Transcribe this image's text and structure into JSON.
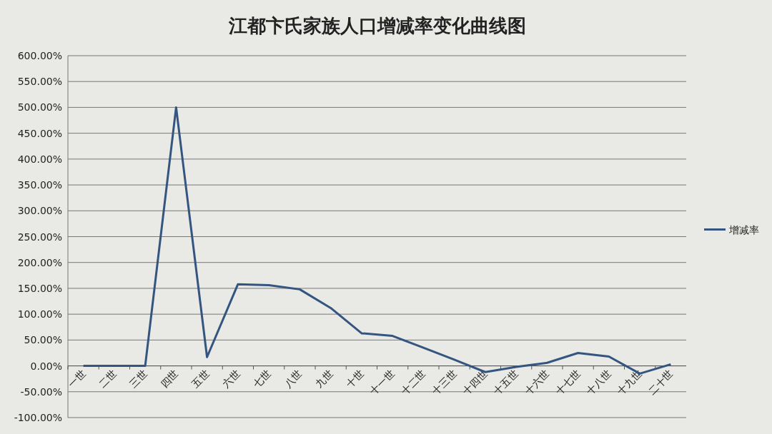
{
  "chart_data": {
    "type": "line",
    "title": "江都卞氏家族人口增减率变化曲线图",
    "categories": [
      "一世",
      "二世",
      "三世",
      "四世",
      "五世",
      "六世",
      "七世",
      "八世",
      "九世",
      "十世",
      "十一世",
      "十二世",
      "十三世",
      "十四世",
      "十五世",
      "十六世",
      "十七世",
      "十八世",
      "十九世",
      "二十世"
    ],
    "series": [
      {
        "name": "增减率",
        "color": "#34557f",
        "values": [
          0,
          0,
          0,
          500,
          17,
          158,
          156,
          148,
          112,
          63,
          58,
          35,
          12,
          -12,
          -2,
          6,
          25,
          18,
          -15,
          3
        ]
      }
    ],
    "ylim": [
      -100,
      600
    ],
    "yticks": [
      {
        "value": -100,
        "label": "-100.00%"
      },
      {
        "value": -50,
        "label": "-50.00%"
      },
      {
        "value": 0,
        "label": "0.00%"
      },
      {
        "value": 50,
        "label": "50.00%"
      },
      {
        "value": 100,
        "label": "100.00%"
      },
      {
        "value": 150,
        "label": "150.00%"
      },
      {
        "value": 200,
        "label": "200.00%"
      },
      {
        "value": 250,
        "label": "250.00%"
      },
      {
        "value": 300,
        "label": "300.00%"
      },
      {
        "value": 350,
        "label": "350.00%"
      },
      {
        "value": 400,
        "label": "400.00%"
      },
      {
        "value": 450,
        "label": "450.00%"
      },
      {
        "value": 500,
        "label": "500.00%"
      },
      {
        "value": 550,
        "label": "550.00%"
      },
      {
        "value": 600,
        "label": "600.00%"
      }
    ],
    "grid": "y",
    "legend": "right",
    "marker": "none",
    "line_style": "solid"
  }
}
